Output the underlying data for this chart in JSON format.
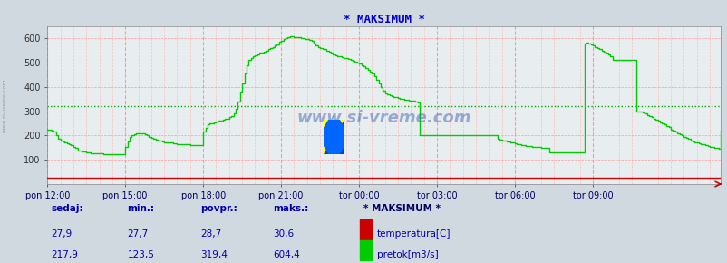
{
  "title": "* MAKSIMUM *",
  "bg_color": "#d0d8e0",
  "plot_bg_color": "#e8eef0",
  "title_color": "#0000cc",
  "watermark": "www.si-vreme.com",
  "ylim": [
    0,
    650
  ],
  "yticks": [
    100,
    200,
    300,
    400,
    500,
    600
  ],
  "xtick_labels": [
    "pon 12:00",
    "pon 15:00",
    "pon 18:00",
    "pon 21:00",
    "tor 00:00",
    "tor 03:00",
    "tor 06:00",
    "tor 09:00"
  ],
  "xtick_positions": [
    0,
    36,
    72,
    108,
    144,
    180,
    216,
    252
  ],
  "total_points": 288,
  "avg_line_value": 319.4,
  "avg_line_color": "#00aa00",
  "temperature_color": "#cc0000",
  "flow_color": "#00cc00",
  "grid_color_major": "#ff9999",
  "grid_color_minor": "#ffbbbb",
  "legend_title": "* MAKSIMUM *",
  "legend_title_color": "#000066",
  "sedaj_label": "sedaj:",
  "min_label": "min.:",
  "povpr_label": "povpr.:",
  "maks_label": "maks.:",
  "temp_sedaj": "27,9",
  "temp_min": "27,7",
  "temp_povpr": "28,7",
  "temp_maks": "30,6",
  "flow_sedaj": "217,9",
  "flow_min": "123,5",
  "flow_povpr": "319,4",
  "flow_maks": "604,4",
  "label_color": "#0000aa",
  "side_text": "www.si-vreme.com",
  "flow_data": [
    225,
    225,
    220,
    215,
    200,
    185,
    178,
    175,
    170,
    168,
    165,
    162,
    155,
    148,
    140,
    138,
    135,
    133,
    132,
    130,
    128,
    128,
    127,
    127,
    126,
    126,
    125,
    125,
    125,
    124,
    124,
    124,
    124,
    123,
    123,
    123,
    155,
    175,
    195,
    200,
    205,
    210,
    210,
    210,
    210,
    205,
    200,
    195,
    190,
    185,
    182,
    180,
    178,
    175,
    173,
    172,
    171,
    170,
    168,
    167,
    165,
    165,
    164,
    164,
    163,
    163,
    162,
    162,
    162,
    162,
    162,
    162,
    215,
    230,
    245,
    250,
    252,
    255,
    258,
    260,
    262,
    265,
    268,
    270,
    275,
    280,
    290,
    310,
    340,
    380,
    415,
    455,
    490,
    510,
    518,
    525,
    530,
    535,
    540,
    543,
    546,
    550,
    555,
    560,
    565,
    570,
    577,
    585,
    590,
    596,
    600,
    604,
    608,
    608,
    607,
    607,
    605,
    603,
    600,
    598,
    596,
    595,
    590,
    580,
    570,
    565,
    560,
    558,
    555,
    550,
    545,
    540,
    535,
    530,
    528,
    525,
    523,
    520,
    518,
    515,
    510,
    508,
    505,
    500,
    495,
    490,
    485,
    478,
    472,
    465,
    455,
    445,
    430,
    415,
    400,
    385,
    375,
    368,
    365,
    362,
    360,
    358,
    355,
    352,
    350,
    348,
    346,
    345,
    343,
    342,
    340,
    338,
    200,
    200,
    200,
    200,
    200,
    200,
    200,
    200,
    200,
    200,
    200,
    200,
    200,
    200,
    200,
    200,
    200,
    200,
    200,
    200,
    200,
    200,
    200,
    200,
    200,
    200,
    200,
    200,
    200,
    200,
    200,
    200,
    200,
    200,
    200,
    200,
    185,
    182,
    180,
    178,
    176,
    175,
    173,
    170,
    168,
    165,
    163,
    162,
    160,
    158,
    157,
    156,
    155,
    154,
    153,
    152,
    150,
    149,
    148,
    148,
    130,
    130,
    130,
    130,
    130,
    130,
    130,
    130,
    130,
    130,
    130,
    130,
    130,
    130,
    130,
    130,
    580,
    582,
    580,
    575,
    570,
    565,
    560,
    555,
    550,
    545,
    540,
    535,
    525,
    510,
    510,
    510,
    510,
    510,
    510,
    510,
    510,
    510,
    510,
    510,
    300,
    300,
    300,
    295,
    290,
    285,
    280,
    275,
    270,
    265,
    260,
    255,
    250,
    245,
    240,
    235,
    225,
    220,
    215,
    210,
    205,
    200,
    195,
    190,
    185,
    180,
    175,
    173,
    170,
    168,
    165,
    163,
    160,
    158,
    155,
    153,
    150,
    148,
    145,
    220
  ],
  "temp_value": 27.9
}
